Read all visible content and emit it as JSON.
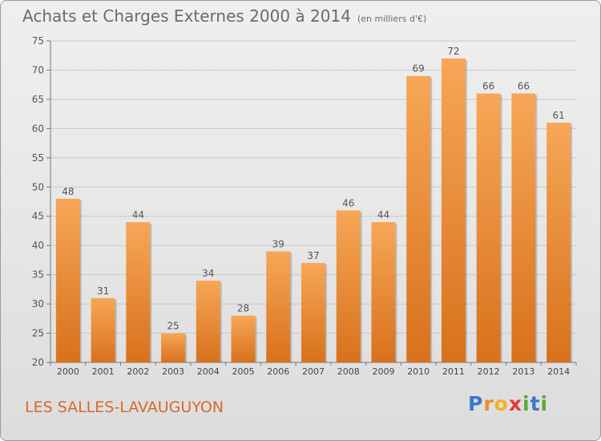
{
  "title": "Achats et Charges Externes 2000 à 2014",
  "subtitle": "(en milliers d'€)",
  "place": "LES SALLES-LAVAUGUYON",
  "logo": "Proxiti",
  "colors": {
    "bar_top": "#f6a757",
    "bar_bottom": "#d8711c",
    "title": "#6b6b6b",
    "place": "#d66a2a"
  },
  "chart_data": {
    "type": "bar",
    "title": "Achats et Charges Externes 2000 à 2014",
    "subtitle": "(en milliers d'€)",
    "xlabel": "",
    "ylabel": "",
    "categories": [
      "2000",
      "2001",
      "2002",
      "2003",
      "2004",
      "2005",
      "2006",
      "2007",
      "2008",
      "2009",
      "2010",
      "2011",
      "2012",
      "2013",
      "2014"
    ],
    "values": [
      48,
      31,
      44,
      25,
      34,
      28,
      39,
      37,
      46,
      44,
      69,
      72,
      66,
      66,
      61
    ],
    "ylim": [
      20,
      75
    ],
    "yticks": [
      20,
      25,
      30,
      35,
      40,
      45,
      50,
      55,
      60,
      65,
      70,
      75
    ],
    "grid": true,
    "data_labels": true
  }
}
